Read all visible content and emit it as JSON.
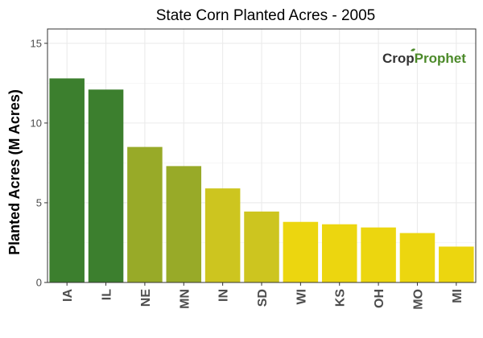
{
  "chart_data": {
    "type": "bar",
    "title": "State Corn Planted Acres - 2005",
    "xlabel": "",
    "ylabel": "Planted Acres (M Acres)",
    "categories": [
      "IA",
      "IL",
      "NE",
      "MN",
      "IN",
      "SD",
      "WI",
      "KS",
      "OH",
      "MO",
      "MI"
    ],
    "values": [
      12.8,
      12.1,
      8.5,
      7.3,
      5.9,
      4.45,
      3.8,
      3.65,
      3.45,
      3.1,
      2.25
    ],
    "bar_colors": [
      "#3c7f2e",
      "#3c7f2e",
      "#98aa28",
      "#98aa28",
      "#cdc51f",
      "#cdc51f",
      "#ecd60f",
      "#ecd60f",
      "#ecd60f",
      "#ecd60f",
      "#ecd60f"
    ],
    "ylim": [
      0,
      15.9
    ],
    "yticks": [
      0,
      5,
      10,
      15
    ],
    "grid": true,
    "legend": "none"
  },
  "logo": {
    "part1": "Crop",
    "part2": "Prophet",
    "color_dark": "#333333",
    "color_green": "#4c8a2a"
  }
}
